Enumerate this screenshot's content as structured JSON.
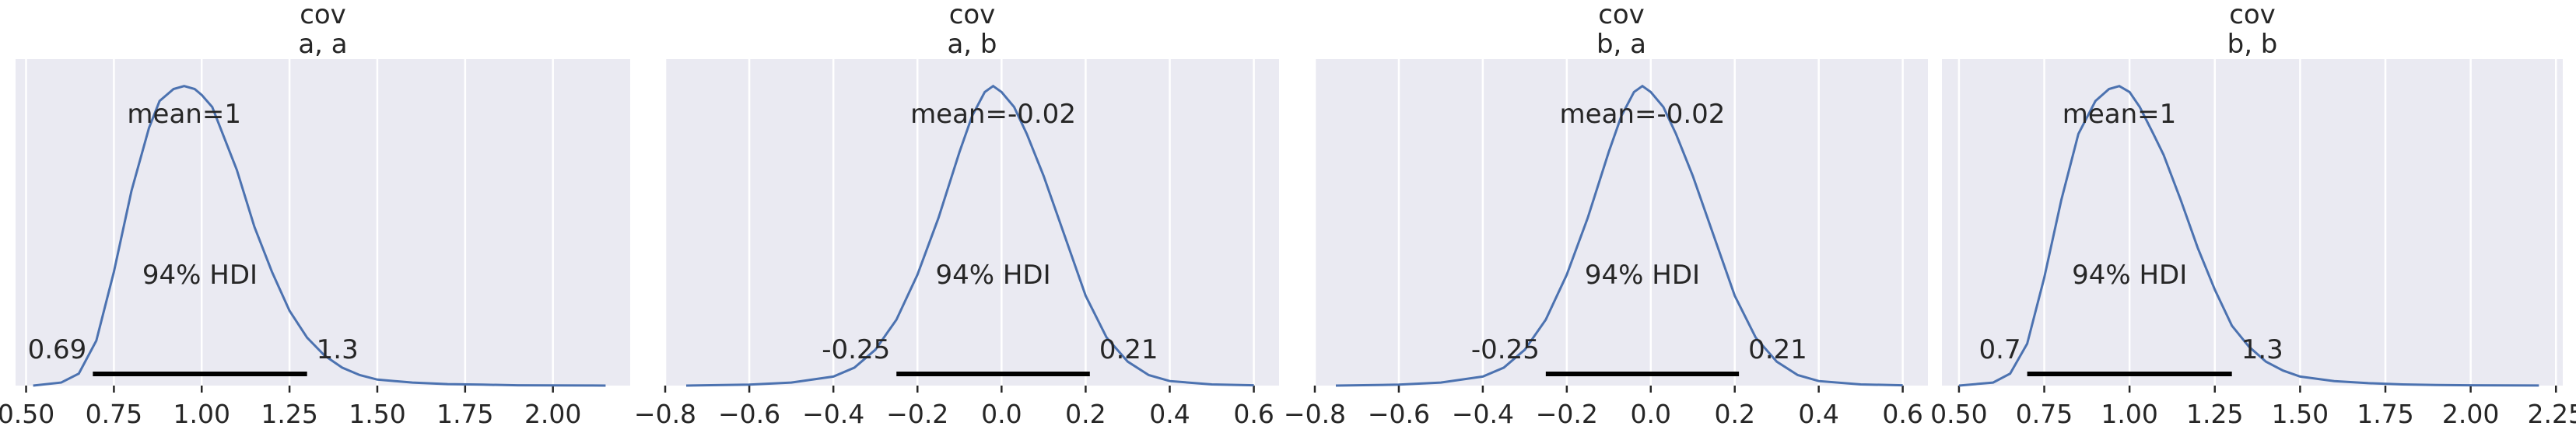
{
  "chart_data": [
    {
      "type": "line",
      "title": "cov\na, a",
      "title_lines": [
        "cov",
        "a, a"
      ],
      "mean_label": "mean=1",
      "hdi_label": "94% HDI",
      "hdi": [
        0.69,
        1.3
      ],
      "hdi_low_label": "0.69",
      "hdi_high_label": "1.3",
      "xlim": [
        0.47,
        2.22
      ],
      "ylim": [
        0,
        1.09
      ],
      "xticks": [
        0.5,
        0.75,
        1.0,
        1.25,
        1.5,
        1.75,
        2.0
      ],
      "xtick_labels": [
        "0.50",
        "0.75",
        "1.00",
        "1.25",
        "1.50",
        "1.75",
        "2.00"
      ],
      "grid": true,
      "x": [
        0.52,
        0.6,
        0.65,
        0.7,
        0.75,
        0.8,
        0.85,
        0.88,
        0.92,
        0.95,
        0.98,
        1.0,
        1.03,
        1.06,
        1.1,
        1.15,
        1.2,
        1.25,
        1.3,
        1.35,
        1.4,
        1.45,
        1.5,
        1.6,
        1.7,
        1.8,
        1.9,
        2.0,
        2.1,
        2.15
      ],
      "y": [
        0.0,
        0.01,
        0.04,
        0.15,
        0.38,
        0.65,
        0.86,
        0.95,
        0.99,
        1.0,
        0.99,
        0.97,
        0.93,
        0.84,
        0.72,
        0.53,
        0.38,
        0.25,
        0.16,
        0.1,
        0.06,
        0.035,
        0.02,
        0.01,
        0.005,
        0.003,
        0.001,
        0.0005,
        0.0002,
        0.0001
      ]
    },
    {
      "type": "line",
      "title": "cov\na, b",
      "title_lines": [
        "cov",
        "a, b"
      ],
      "mean_label": "mean=-0.02",
      "hdi_label": "94% HDI",
      "hdi": [
        -0.25,
        0.21
      ],
      "hdi_low_label": "-0.25",
      "hdi_high_label": "0.21",
      "xlim": [
        -0.8,
        0.66
      ],
      "ylim": [
        0,
        1.09
      ],
      "xticks": [
        -0.8,
        -0.6,
        -0.4,
        -0.2,
        0.0,
        0.2,
        0.4,
        0.6
      ],
      "xtick_labels": [
        "−0.8",
        "−0.6",
        "−0.4",
        "−0.2",
        "0.0",
        "0.2",
        "0.4",
        "0.6"
      ],
      "grid": true,
      "x": [
        -0.75,
        -0.6,
        -0.5,
        -0.4,
        -0.35,
        -0.3,
        -0.25,
        -0.2,
        -0.15,
        -0.1,
        -0.07,
        -0.04,
        -0.02,
        0.0,
        0.03,
        0.06,
        0.1,
        0.15,
        0.2,
        0.25,
        0.3,
        0.35,
        0.4,
        0.5,
        0.6
      ],
      "y": [
        0.0,
        0.003,
        0.01,
        0.03,
        0.06,
        0.12,
        0.22,
        0.37,
        0.56,
        0.78,
        0.9,
        0.98,
        1.0,
        0.98,
        0.93,
        0.84,
        0.7,
        0.5,
        0.3,
        0.16,
        0.08,
        0.035,
        0.015,
        0.004,
        0.001
      ]
    },
    {
      "type": "line",
      "title": "cov\nb, a",
      "title_lines": [
        "cov",
        "b, a"
      ],
      "mean_label": "mean=-0.02",
      "hdi_label": "94% HDI",
      "hdi": [
        -0.25,
        0.21
      ],
      "hdi_low_label": "-0.25",
      "hdi_high_label": "0.21",
      "xlim": [
        -0.8,
        0.66
      ],
      "ylim": [
        0,
        1.09
      ],
      "xticks": [
        -0.8,
        -0.6,
        -0.4,
        -0.2,
        0.0,
        0.2,
        0.4,
        0.6
      ],
      "xtick_labels": [
        "−0.8",
        "−0.6",
        "−0.4",
        "−0.2",
        "0.0",
        "0.2",
        "0.4",
        "0.6"
      ],
      "grid": true,
      "x": [
        -0.75,
        -0.6,
        -0.5,
        -0.4,
        -0.35,
        -0.3,
        -0.25,
        -0.2,
        -0.15,
        -0.1,
        -0.07,
        -0.04,
        -0.02,
        0.0,
        0.03,
        0.06,
        0.1,
        0.15,
        0.2,
        0.25,
        0.3,
        0.35,
        0.4,
        0.5,
        0.6
      ],
      "y": [
        0.0,
        0.003,
        0.01,
        0.03,
        0.06,
        0.12,
        0.22,
        0.37,
        0.56,
        0.78,
        0.9,
        0.98,
        1.0,
        0.98,
        0.93,
        0.84,
        0.7,
        0.5,
        0.3,
        0.16,
        0.08,
        0.035,
        0.015,
        0.004,
        0.001
      ]
    },
    {
      "type": "line",
      "title": "cov\nb, b",
      "title_lines": [
        "cov",
        "b, b"
      ],
      "mean_label": "mean=1",
      "hdi_label": "94% HDI",
      "hdi": [
        0.7,
        1.3
      ],
      "hdi_low_label": "0.7",
      "hdi_high_label": "1.3",
      "xlim": [
        0.45,
        2.27
      ],
      "ylim": [
        0,
        1.09
      ],
      "xticks": [
        0.5,
        0.75,
        1.0,
        1.25,
        1.5,
        1.75,
        2.0,
        2.25
      ],
      "xtick_labels": [
        "0.50",
        "0.75",
        "1.00",
        "1.25",
        "1.50",
        "1.75",
        "2.00",
        "2.25"
      ],
      "grid": true,
      "x": [
        0.5,
        0.6,
        0.65,
        0.7,
        0.75,
        0.8,
        0.85,
        0.9,
        0.94,
        0.97,
        1.0,
        1.03,
        1.07,
        1.1,
        1.15,
        1.2,
        1.25,
        1.3,
        1.35,
        1.4,
        1.45,
        1.5,
        1.6,
        1.7,
        1.8,
        1.9,
        2.0,
        2.1,
        2.2
      ],
      "y": [
        0.0,
        0.01,
        0.04,
        0.14,
        0.36,
        0.62,
        0.84,
        0.95,
        0.99,
        1.0,
        0.98,
        0.93,
        0.84,
        0.77,
        0.62,
        0.46,
        0.32,
        0.2,
        0.13,
        0.08,
        0.05,
        0.03,
        0.015,
        0.008,
        0.004,
        0.002,
        0.001,
        0.0005,
        0.0002
      ]
    }
  ]
}
